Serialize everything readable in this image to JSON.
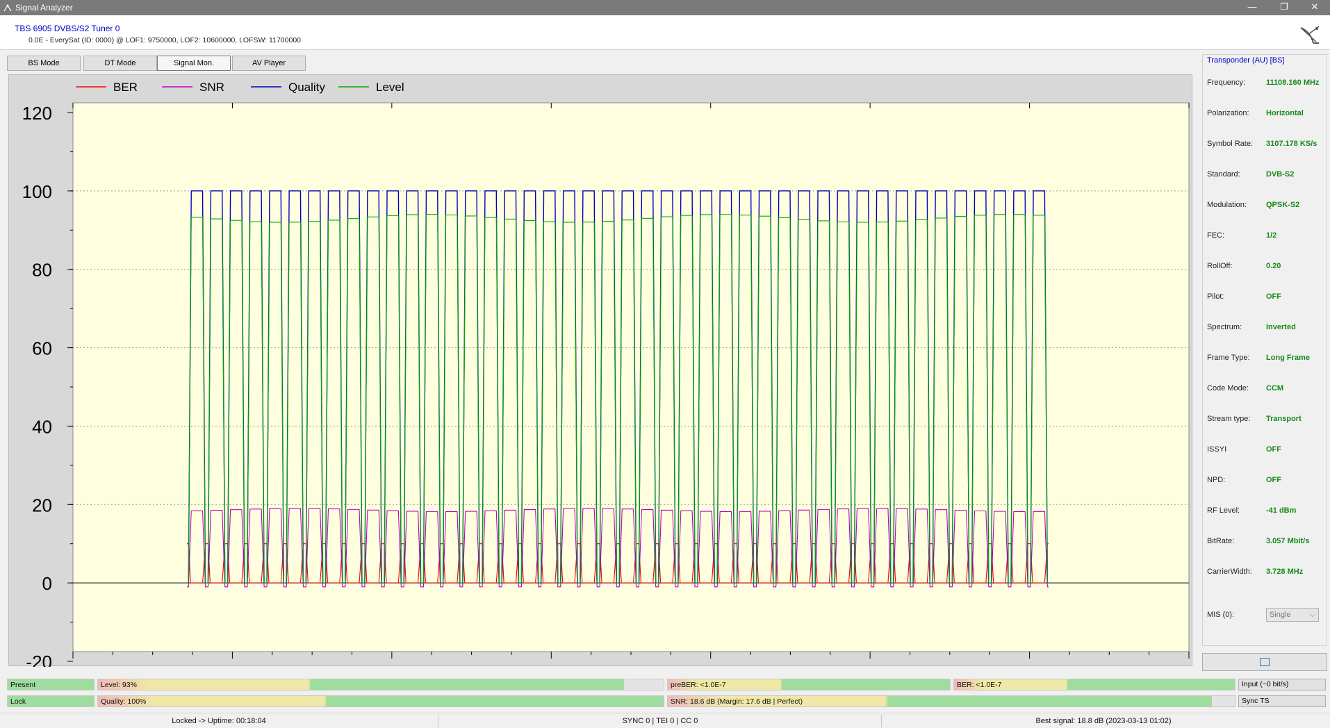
{
  "window": {
    "title": "Signal Analyzer",
    "controls": {
      "minimize": "—",
      "restore": "❐",
      "close": "✕"
    }
  },
  "header": {
    "tuner_name": "TBS 6905 DVBS/S2 Tuner 0",
    "tuner_info": "0.0E - EverySat (ID: 0000) @ LOF1: 9750000, LOF2: 10600000, LOFSW: 11700000",
    "logo_icon": "satellite-dish-icon"
  },
  "tabs": [
    {
      "label": "BS Mode",
      "active": false
    },
    {
      "label": "DT Mode",
      "active": false
    },
    {
      "label": "Signal Mon.",
      "active": true
    },
    {
      "label": "AV Player",
      "active": false
    }
  ],
  "chart_data": {
    "type": "line",
    "legend_position": "top-left",
    "grid": "horizontal dotted",
    "ylim": [
      -20,
      120
    ],
    "y_ticks": [
      "120",
      "100",
      "80",
      "60",
      "40",
      "20",
      "0",
      "-20"
    ],
    "series": [
      {
        "name": "BER",
        "color": "#ff0000"
      },
      {
        "name": "SNR",
        "color": "#c000c0"
      },
      {
        "name": "Quality",
        "color": "#0000c0"
      },
      {
        "name": "Level",
        "color": "#00aa00"
      }
    ],
    "locked_values": {
      "BER": 0,
      "SNR": 18.6,
      "Quality": 100,
      "Level": 93
    },
    "unlocked_values": {
      "BER": 10,
      "SNR": -1,
      "Quality": 0,
      "Level": 0
    },
    "lock_cycles": 44
  },
  "transponder": {
    "title": "Transponder (AU) [BS]",
    "props": [
      {
        "key": "Frequency:",
        "value": "11108.160 MHz"
      },
      {
        "key": "Polarization:",
        "value": "Horizontal"
      },
      {
        "key": "Symbol Rate:",
        "value": "3107.178 KS/s"
      },
      {
        "key": "Standard:",
        "value": "DVB-S2"
      },
      {
        "key": "Modulation:",
        "value": "QPSK-S2"
      },
      {
        "key": "FEC:",
        "value": "1/2"
      },
      {
        "key": "RollOff:",
        "value": "0.20"
      },
      {
        "key": "Pilot:",
        "value": "OFF"
      },
      {
        "key": "Spectrum:",
        "value": "Inverted"
      },
      {
        "key": "Frame Type:",
        "value": "Long Frame"
      },
      {
        "key": "Code Mode:",
        "value": "CCM"
      },
      {
        "key": "Stream type:",
        "value": "Transport"
      },
      {
        "key": "ISSYI",
        "value": "OFF"
      },
      {
        "key": "NPD:",
        "value": "OFF"
      },
      {
        "key": "RF Level:",
        "value": "-41 dBm"
      },
      {
        "key": "BitRate:",
        "value": "3.057 Mbit/s"
      },
      {
        "key": "CarrierWidth:",
        "value": "3.728 MHz"
      }
    ],
    "mis_label": "MIS (0):",
    "mis_value": "Single"
  },
  "indicators": {
    "present": {
      "label": "Present",
      "fraction": 1.0
    },
    "lock": {
      "label": "Lock",
      "fraction": 1.0
    },
    "level": {
      "label": "Level: 93%",
      "fraction": 0.93
    },
    "quality": {
      "label": "Quality: 100%",
      "fraction": 1.0
    },
    "preber": {
      "label": "preBER: <1.0E-7",
      "fraction": 1.0
    },
    "ber": {
      "label": "BER: <1.0E-7",
      "fraction": 1.0
    },
    "snr": {
      "label": "SNR: 18.6 dB (Margin: 17.6 dB | Perfect)",
      "fraction": 0.96
    },
    "input_button": "Input (~0 bit/s)",
    "sync_ts_button": "Sync TS"
  },
  "status": {
    "uptime": "Locked -> Uptime: 00:18:04",
    "sync": "SYNC 0 | TEI 0 | CC 0",
    "best_signal": "Best signal: 18.8 dB (2023-03-13 01:02)"
  }
}
